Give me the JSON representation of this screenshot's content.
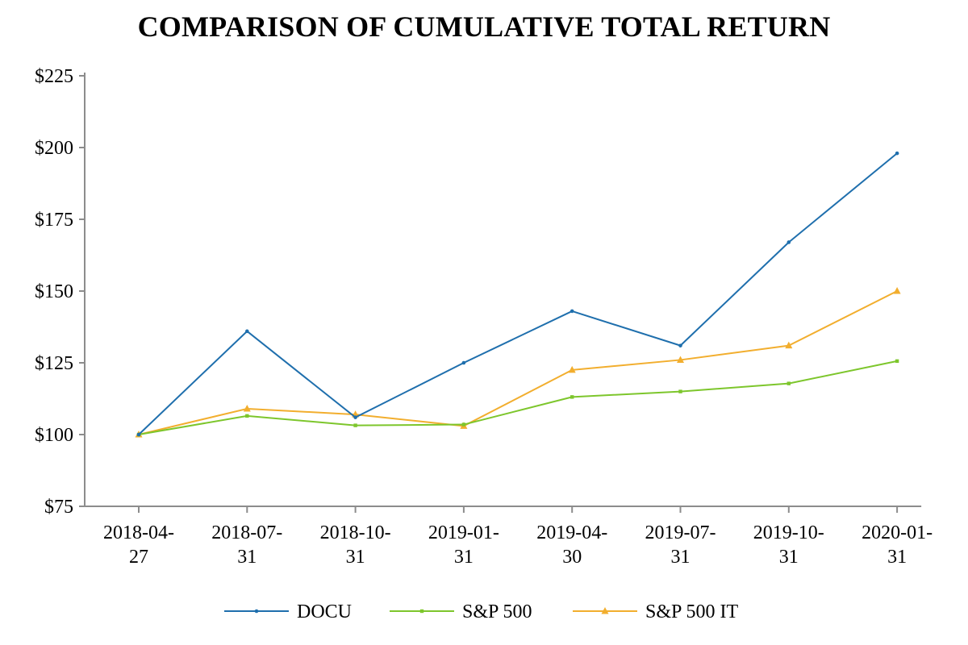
{
  "chart_data": {
    "type": "line",
    "title": "COMPARISON OF CUMULATIVE TOTAL RETURN",
    "xlabel": "",
    "ylabel": "",
    "categories": [
      "2018-04-27",
      "2018-07-31",
      "2018-10-31",
      "2019-01-31",
      "2019-04-30",
      "2019-07-31",
      "2019-10-31",
      "2020-01-31"
    ],
    "x_tick_labels": [
      [
        "2018-04-",
        "27"
      ],
      [
        "2018-07-",
        "31"
      ],
      [
        "2018-10-",
        "31"
      ],
      [
        "2019-01-",
        "31"
      ],
      [
        "2019-04-",
        "30"
      ],
      [
        "2019-07-",
        "31"
      ],
      [
        "2019-10-",
        "31"
      ],
      [
        "2020-01-",
        "31"
      ]
    ],
    "ylim": [
      75,
      225
    ],
    "y_ticks": [
      75,
      100,
      125,
      150,
      175,
      200,
      225
    ],
    "y_tick_labels": [
      "$75",
      "$100",
      "$125",
      "$150",
      "$175",
      "$200",
      "$225"
    ],
    "grid": false,
    "legend_position": "bottom",
    "series": [
      {
        "name": "DOCU",
        "color": "#1f6fad",
        "marker": "dot",
        "values": [
          100,
          136,
          106,
          125,
          143,
          131,
          167,
          198
        ]
      },
      {
        "name": "S&P 500",
        "color": "#7dc62c",
        "marker": "square",
        "values": [
          100,
          106.5,
          103.2,
          103.5,
          113.1,
          115,
          117.8,
          125.6
        ]
      },
      {
        "name": "S&P 500 IT",
        "color": "#f2ae2e",
        "marker": "triangle",
        "values": [
          100,
          109,
          107,
          103,
          122.5,
          126,
          131,
          150
        ]
      }
    ]
  }
}
